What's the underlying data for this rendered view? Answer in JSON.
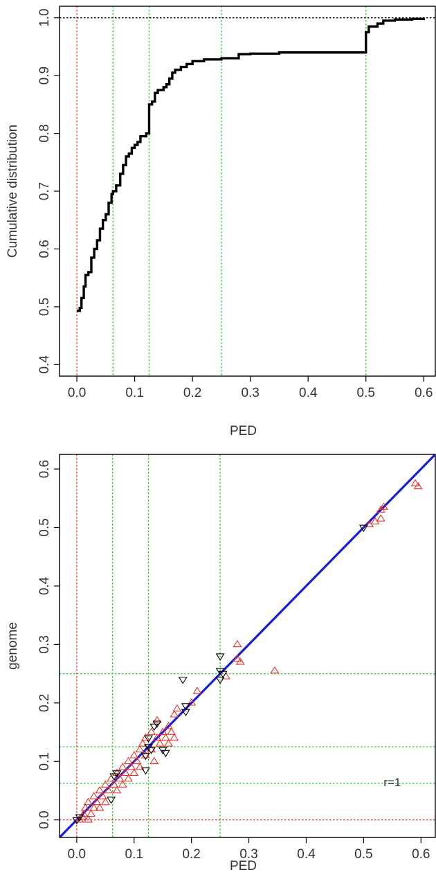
{
  "chart_data": [
    {
      "type": "line",
      "xlabel": "PED",
      "ylabel": "Cumulative distribution",
      "xlim": [
        -0.03,
        0.62
      ],
      "ylim": [
        0.38,
        1.02
      ],
      "xticks": [
        0.0,
        0.1,
        0.2,
        0.3,
        0.4,
        0.5,
        0.6
      ],
      "yticks": [
        0.4,
        0.5,
        0.6,
        0.7,
        0.8,
        0.9,
        1.0
      ],
      "xtick_labels": [
        "0.0",
        "0.1",
        "0.2",
        "0.3",
        "0.4",
        "0.5",
        "0.6"
      ],
      "ytick_labels": [
        "0.4",
        "0.5",
        "0.6",
        "0.7",
        "0.8",
        "0.9",
        "1.0"
      ],
      "grid": false,
      "reference_lines": [
        {
          "orientation": "vertical",
          "value": 0.0,
          "color": "#e8322a",
          "style": "dotted"
        },
        {
          "orientation": "vertical",
          "value": 0.0625,
          "color": "#22cc22",
          "style": "dotted"
        },
        {
          "orientation": "vertical",
          "value": 0.125,
          "color": "#22cc22",
          "style": "dotted"
        },
        {
          "orientation": "vertical",
          "value": 0.25,
          "color": "#22cc22",
          "style": "dotted"
        },
        {
          "orientation": "vertical",
          "value": 0.5,
          "color": "#22cc22",
          "style": "dotted"
        },
        {
          "orientation": "horizontal",
          "value": 1.0,
          "color": "#000000",
          "style": "dotted"
        }
      ],
      "series": [
        {
          "color": "#000000",
          "points": [
            [
              0.0,
              0.493
            ],
            [
              0.005,
              0.498
            ],
            [
              0.008,
              0.515
            ],
            [
              0.012,
              0.535
            ],
            [
              0.015,
              0.555
            ],
            [
              0.02,
              0.56
            ],
            [
              0.025,
              0.585
            ],
            [
              0.03,
              0.6
            ],
            [
              0.035,
              0.615
            ],
            [
              0.04,
              0.635
            ],
            [
              0.045,
              0.65
            ],
            [
              0.05,
              0.66
            ],
            [
              0.055,
              0.68
            ],
            [
              0.06,
              0.695
            ],
            [
              0.0625,
              0.7
            ],
            [
              0.068,
              0.71
            ],
            [
              0.075,
              0.73
            ],
            [
              0.08,
              0.745
            ],
            [
              0.085,
              0.76
            ],
            [
              0.09,
              0.765
            ],
            [
              0.095,
              0.775
            ],
            [
              0.1,
              0.78
            ],
            [
              0.105,
              0.785
            ],
            [
              0.11,
              0.795
            ],
            [
              0.12,
              0.8
            ],
            [
              0.125,
              0.85
            ],
            [
              0.13,
              0.855
            ],
            [
              0.135,
              0.87
            ],
            [
              0.14,
              0.875
            ],
            [
              0.15,
              0.88
            ],
            [
              0.155,
              0.885
            ],
            [
              0.16,
              0.895
            ],
            [
              0.165,
              0.905
            ],
            [
              0.17,
              0.91
            ],
            [
              0.18,
              0.915
            ],
            [
              0.19,
              0.92
            ],
            [
              0.2,
              0.925
            ],
            [
              0.22,
              0.928
            ],
            [
              0.25,
              0.93
            ],
            [
              0.28,
              0.937
            ],
            [
              0.3,
              0.938
            ],
            [
              0.35,
              0.94
            ],
            [
              0.4,
              0.94
            ],
            [
              0.45,
              0.94
            ],
            [
              0.495,
              0.94
            ],
            [
              0.5,
              0.975
            ],
            [
              0.505,
              0.985
            ],
            [
              0.52,
              0.99
            ],
            [
              0.53,
              0.995
            ],
            [
              0.55,
              0.997
            ],
            [
              0.58,
              0.998
            ],
            [
              0.6,
              1.0
            ]
          ]
        }
      ]
    },
    {
      "type": "scatter",
      "xlabel": "PED",
      "ylabel": "genome",
      "xlim": [
        -0.03,
        0.625
      ],
      "ylim": [
        -0.03,
        0.625
      ],
      "xticks": [
        0.0,
        0.1,
        0.2,
        0.3,
        0.4,
        0.5,
        0.6
      ],
      "yticks": [
        0.0,
        0.1,
        0.2,
        0.3,
        0.4,
        0.5,
        0.6
      ],
      "xtick_labels": [
        "0.0",
        "0.1",
        "0.2",
        "0.3",
        "0.4",
        "0.5",
        "0.6"
      ],
      "ytick_labels": [
        "0.0",
        "0.1",
        "0.2",
        "0.3",
        "0.4",
        "0.5",
        "0.6"
      ],
      "grid": false,
      "annotation": {
        "text": "r=1",
        "x": 0.55,
        "y": 0.065
      },
      "reference_lines": [
        {
          "orientation": "vertical",
          "value": 0.0,
          "color": "#e8322a",
          "style": "dotted"
        },
        {
          "orientation": "vertical",
          "value": 0.0625,
          "color": "#22cc22",
          "style": "dotted"
        },
        {
          "orientation": "vertical",
          "value": 0.125,
          "color": "#22cc22",
          "style": "dotted"
        },
        {
          "orientation": "vertical",
          "value": 0.25,
          "color": "#22cc22",
          "style": "dotted"
        },
        {
          "orientation": "horizontal",
          "value": 0.0,
          "color": "#e8322a",
          "style": "dotted"
        },
        {
          "orientation": "horizontal",
          "value": 0.0625,
          "color": "#22cc22",
          "style": "dotted"
        },
        {
          "orientation": "horizontal",
          "value": 0.125,
          "color": "#22cc22",
          "style": "dotted"
        },
        {
          "orientation": "horizontal",
          "value": 0.25,
          "color": "#22cc22",
          "style": "dotted"
        }
      ],
      "fit_line": {
        "color": "#1a1adc",
        "slope": 1.0,
        "intercept": 0.0
      },
      "series": [
        {
          "marker": "triangle-up",
          "color": "#e8322a",
          "points": [
            [
              0.005,
              0.0
            ],
            [
              0.01,
              0.005
            ],
            [
              0.012,
              0.01
            ],
            [
              0.015,
              0.02
            ],
            [
              0.02,
              0.0
            ],
            [
              0.02,
              0.03
            ],
            [
              0.025,
              0.01
            ],
            [
              0.03,
              0.02
            ],
            [
              0.03,
              0.04
            ],
            [
              0.035,
              0.03
            ],
            [
              0.04,
              0.02
            ],
            [
              0.04,
              0.05
            ],
            [
              0.045,
              0.04
            ],
            [
              0.05,
              0.06
            ],
            [
              0.05,
              0.03
            ],
            [
              0.055,
              0.05
            ],
            [
              0.06,
              0.07
            ],
            [
              0.065,
              0.06
            ],
            [
              0.07,
              0.08
            ],
            [
              0.07,
              0.05
            ],
            [
              0.075,
              0.07
            ],
            [
              0.08,
              0.09
            ],
            [
              0.08,
              0.06
            ],
            [
              0.085,
              0.08
            ],
            [
              0.09,
              0.1
            ],
            [
              0.09,
              0.07
            ],
            [
              0.095,
              0.09
            ],
            [
              0.1,
              0.11
            ],
            [
              0.1,
              0.08
            ],
            [
              0.105,
              0.1
            ],
            [
              0.11,
              0.12
            ],
            [
              0.11,
              0.09
            ],
            [
              0.115,
              0.13
            ],
            [
              0.12,
              0.11
            ],
            [
              0.12,
              0.14
            ],
            [
              0.13,
              0.12
            ],
            [
              0.13,
              0.15
            ],
            [
              0.135,
              0.1
            ],
            [
              0.14,
              0.14
            ],
            [
              0.14,
              0.17
            ],
            [
              0.145,
              0.13
            ],
            [
              0.15,
              0.15
            ],
            [
              0.155,
              0.14
            ],
            [
              0.16,
              0.16
            ],
            [
              0.16,
              0.13
            ],
            [
              0.165,
              0.15
            ],
            [
              0.17,
              0.18
            ],
            [
              0.17,
              0.14
            ],
            [
              0.175,
              0.19
            ],
            [
              0.2,
              0.2
            ],
            [
              0.21,
              0.22
            ],
            [
              0.26,
              0.245
            ],
            [
              0.28,
              0.275
            ],
            [
              0.28,
              0.3
            ],
            [
              0.285,
              0.27
            ],
            [
              0.345,
              0.255
            ],
            [
              0.51,
              0.505
            ],
            [
              0.52,
              0.51
            ],
            [
              0.53,
              0.515
            ],
            [
              0.53,
              0.53
            ],
            [
              0.535,
              0.535
            ],
            [
              0.59,
              0.575
            ],
            [
              0.595,
              0.57
            ]
          ]
        },
        {
          "marker": "triangle-down",
          "color": "#000000",
          "points": [
            [
              0.0,
              0.0
            ],
            [
              0.005,
              0.005
            ],
            [
              0.06,
              0.035
            ],
            [
              0.065,
              0.075
            ],
            [
              0.07,
              0.08
            ],
            [
              0.12,
              0.085
            ],
            [
              0.12,
              0.11
            ],
            [
              0.125,
              0.125
            ],
            [
              0.125,
              0.14
            ],
            [
              0.13,
              0.12
            ],
            [
              0.135,
              0.16
            ],
            [
              0.14,
              0.165
            ],
            [
              0.15,
              0.12
            ],
            [
              0.155,
              0.115
            ],
            [
              0.185,
              0.24
            ],
            [
              0.19,
              0.195
            ],
            [
              0.19,
              0.185
            ],
            [
              0.25,
              0.28
            ],
            [
              0.25,
              0.255
            ],
            [
              0.25,
              0.24
            ],
            [
              0.255,
              0.25
            ],
            [
              0.5,
              0.5
            ]
          ]
        }
      ]
    }
  ]
}
